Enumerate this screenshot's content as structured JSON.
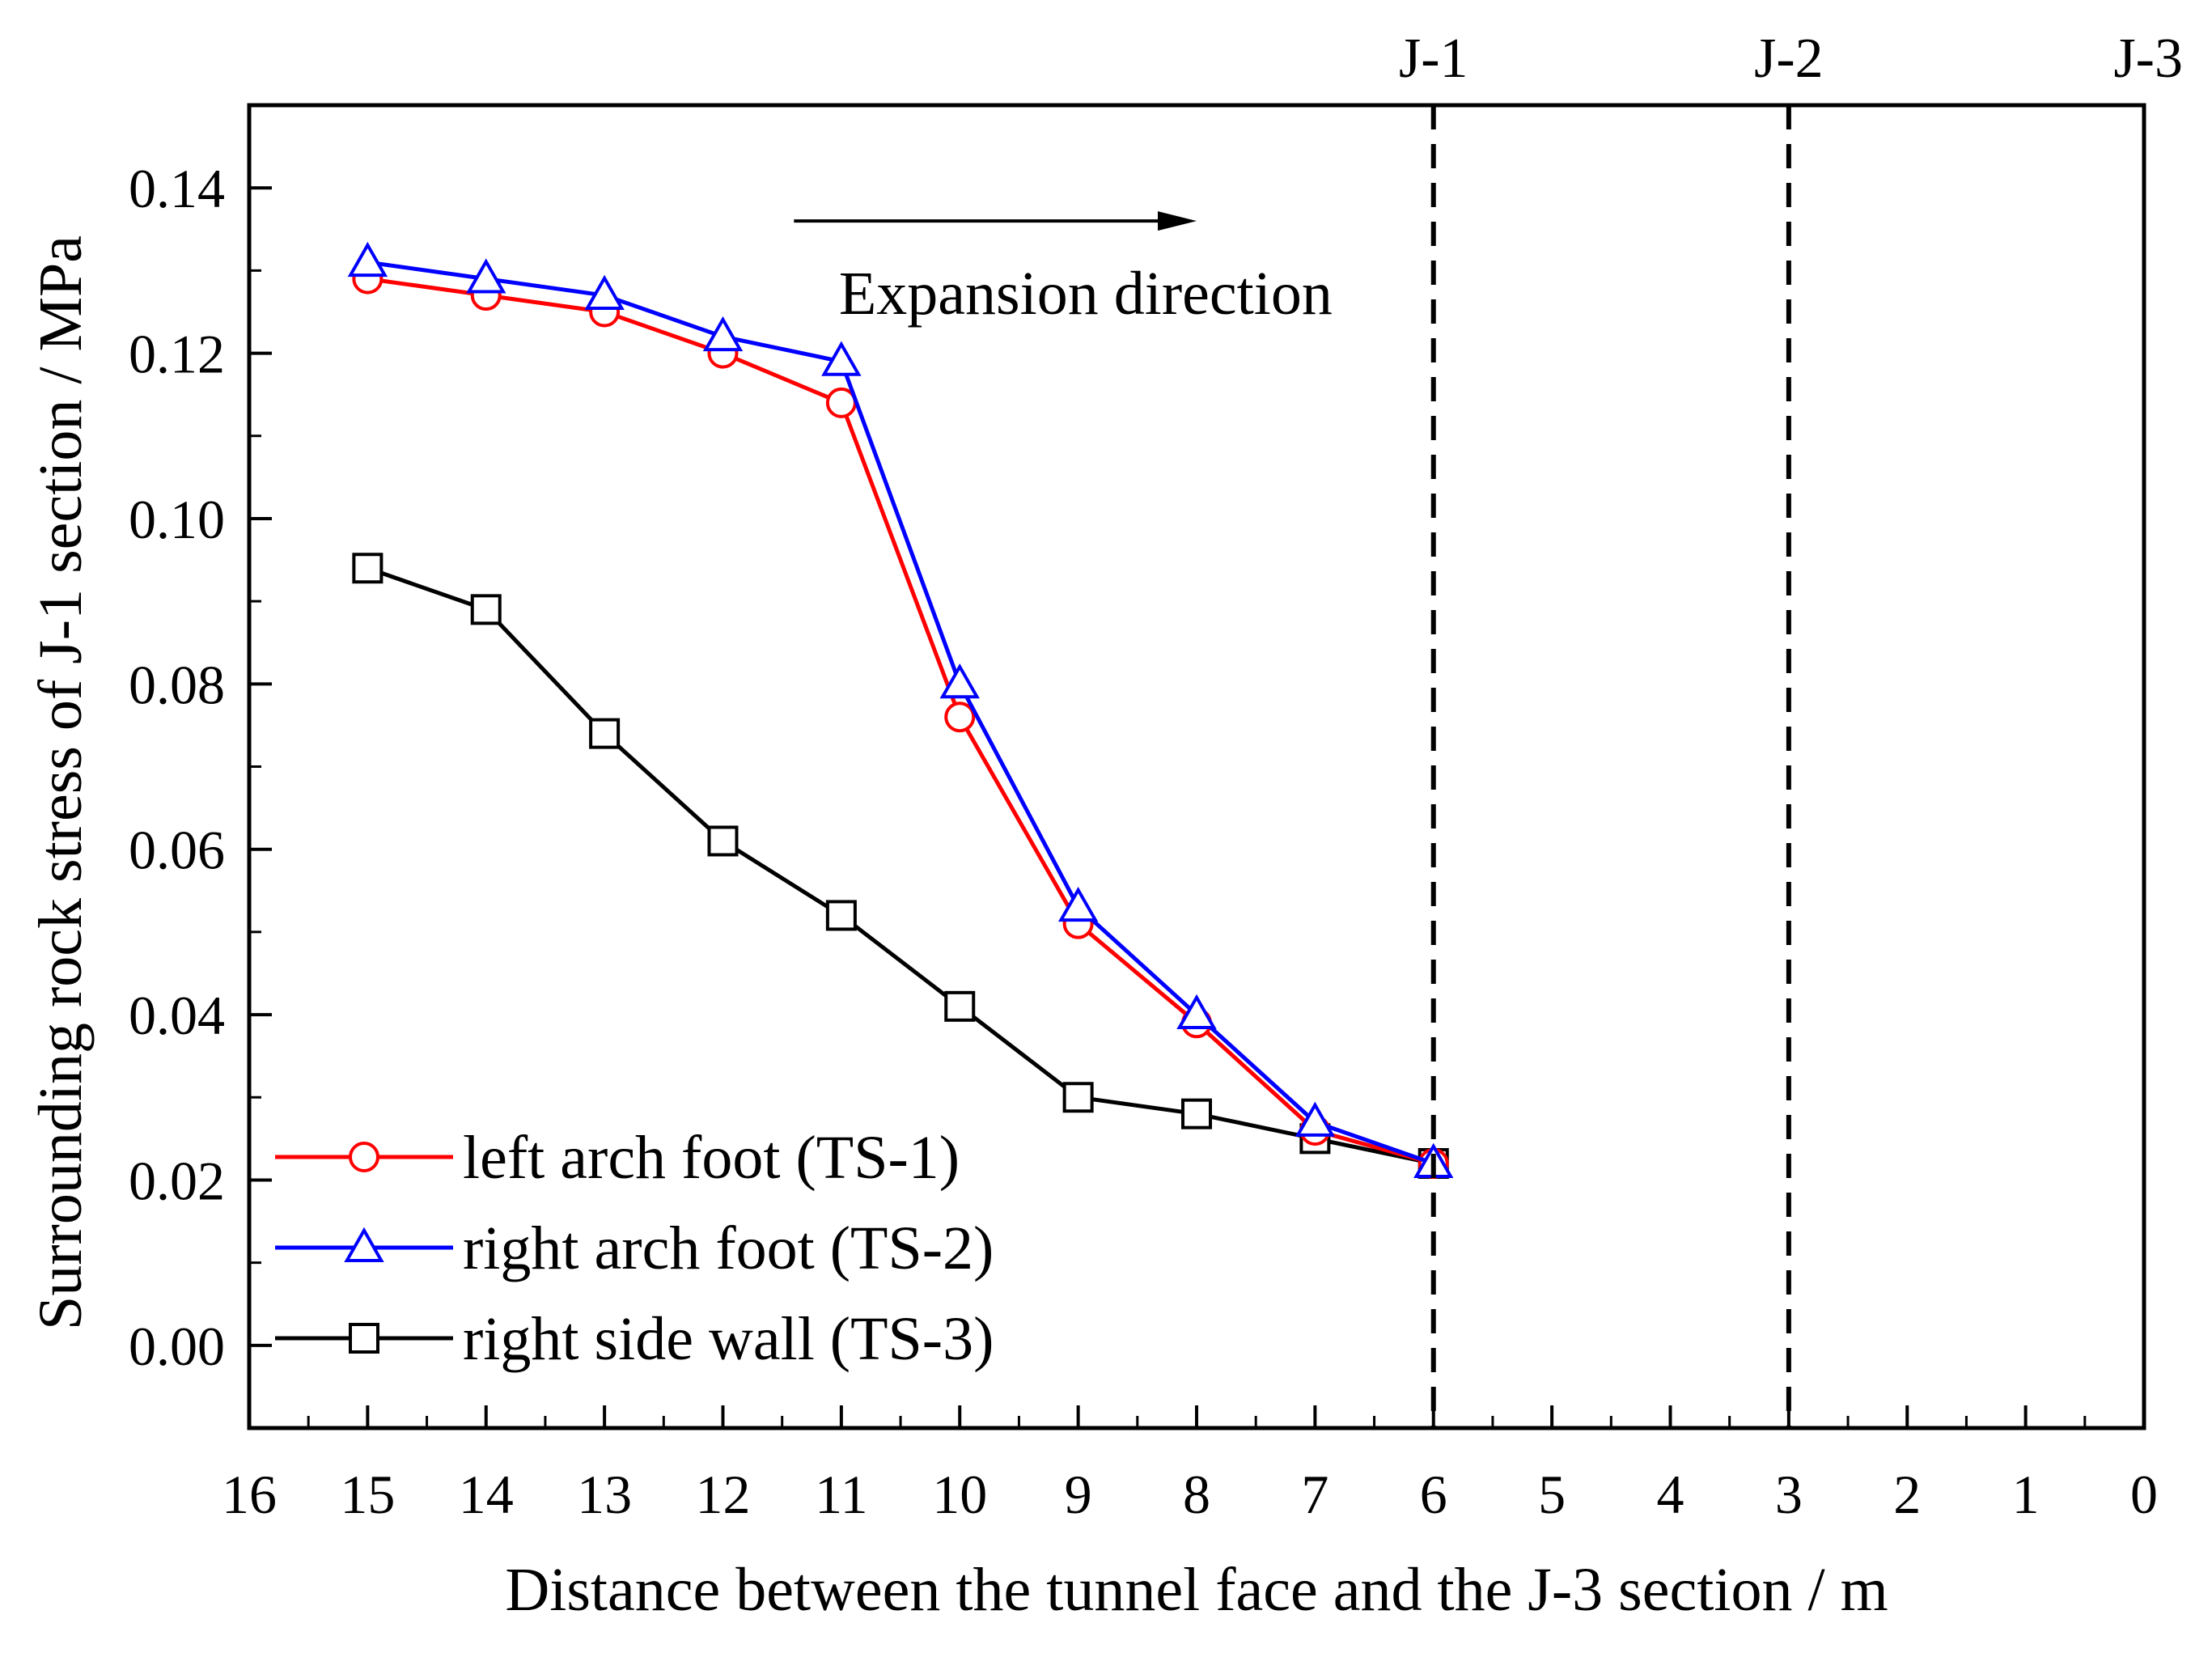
{
  "chart_data": {
    "type": "line",
    "xlabel": "Distance between the tunnel face and the J-3 section / m",
    "ylabel": "Surrounding rock stress of J-1 section / MPa",
    "xlim": [
      16,
      0
    ],
    "ylim": [
      -0.01,
      0.15
    ],
    "x_ticks": [
      16,
      15,
      14,
      13,
      12,
      11,
      10,
      9,
      8,
      7,
      6,
      5,
      4,
      3,
      2,
      1,
      0
    ],
    "y_ticks": [
      0.0,
      0.02,
      0.04,
      0.06,
      0.08,
      0.1,
      0.12,
      0.14
    ],
    "y_tick_labels": [
      "0.00",
      "0.02",
      "0.04",
      "0.06",
      "0.08",
      "0.10",
      "0.12",
      "0.14"
    ],
    "x": [
      15,
      14,
      13,
      12,
      11,
      10,
      9,
      8,
      7,
      6
    ],
    "series": [
      {
        "name": "left arch foot (TS-1)",
        "color": "#ff0000",
        "marker": "circle",
        "values": [
          0.129,
          0.127,
          0.125,
          0.12,
          0.114,
          0.076,
          0.051,
          0.039,
          0.026,
          0.022
        ]
      },
      {
        "name": "right arch foot (TS-2)",
        "color": "#0000ff",
        "marker": "triangle",
        "values": [
          0.131,
          0.129,
          0.127,
          0.122,
          0.119,
          0.08,
          0.053,
          0.04,
          0.027,
          0.022
        ]
      },
      {
        "name": "right side wall (TS-3)",
        "color": "#000000",
        "marker": "square",
        "values": [
          0.094,
          0.089,
          0.074,
          0.061,
          0.052,
          0.041,
          0.03,
          0.028,
          0.025,
          0.022
        ]
      }
    ],
    "sections": [
      {
        "label": "J-1",
        "x": 6,
        "dashed": true
      },
      {
        "label": "J-2",
        "x": 3,
        "dashed": true
      },
      {
        "label": "J-3",
        "x": 0,
        "dashed": false
      }
    ],
    "annotation": {
      "text": "Expansion direction",
      "arrow_from_x": 11.4,
      "arrow_to_x": 8.0,
      "arrow_y": 0.136
    },
    "legend_position": "bottom-left",
    "grid": false
  }
}
